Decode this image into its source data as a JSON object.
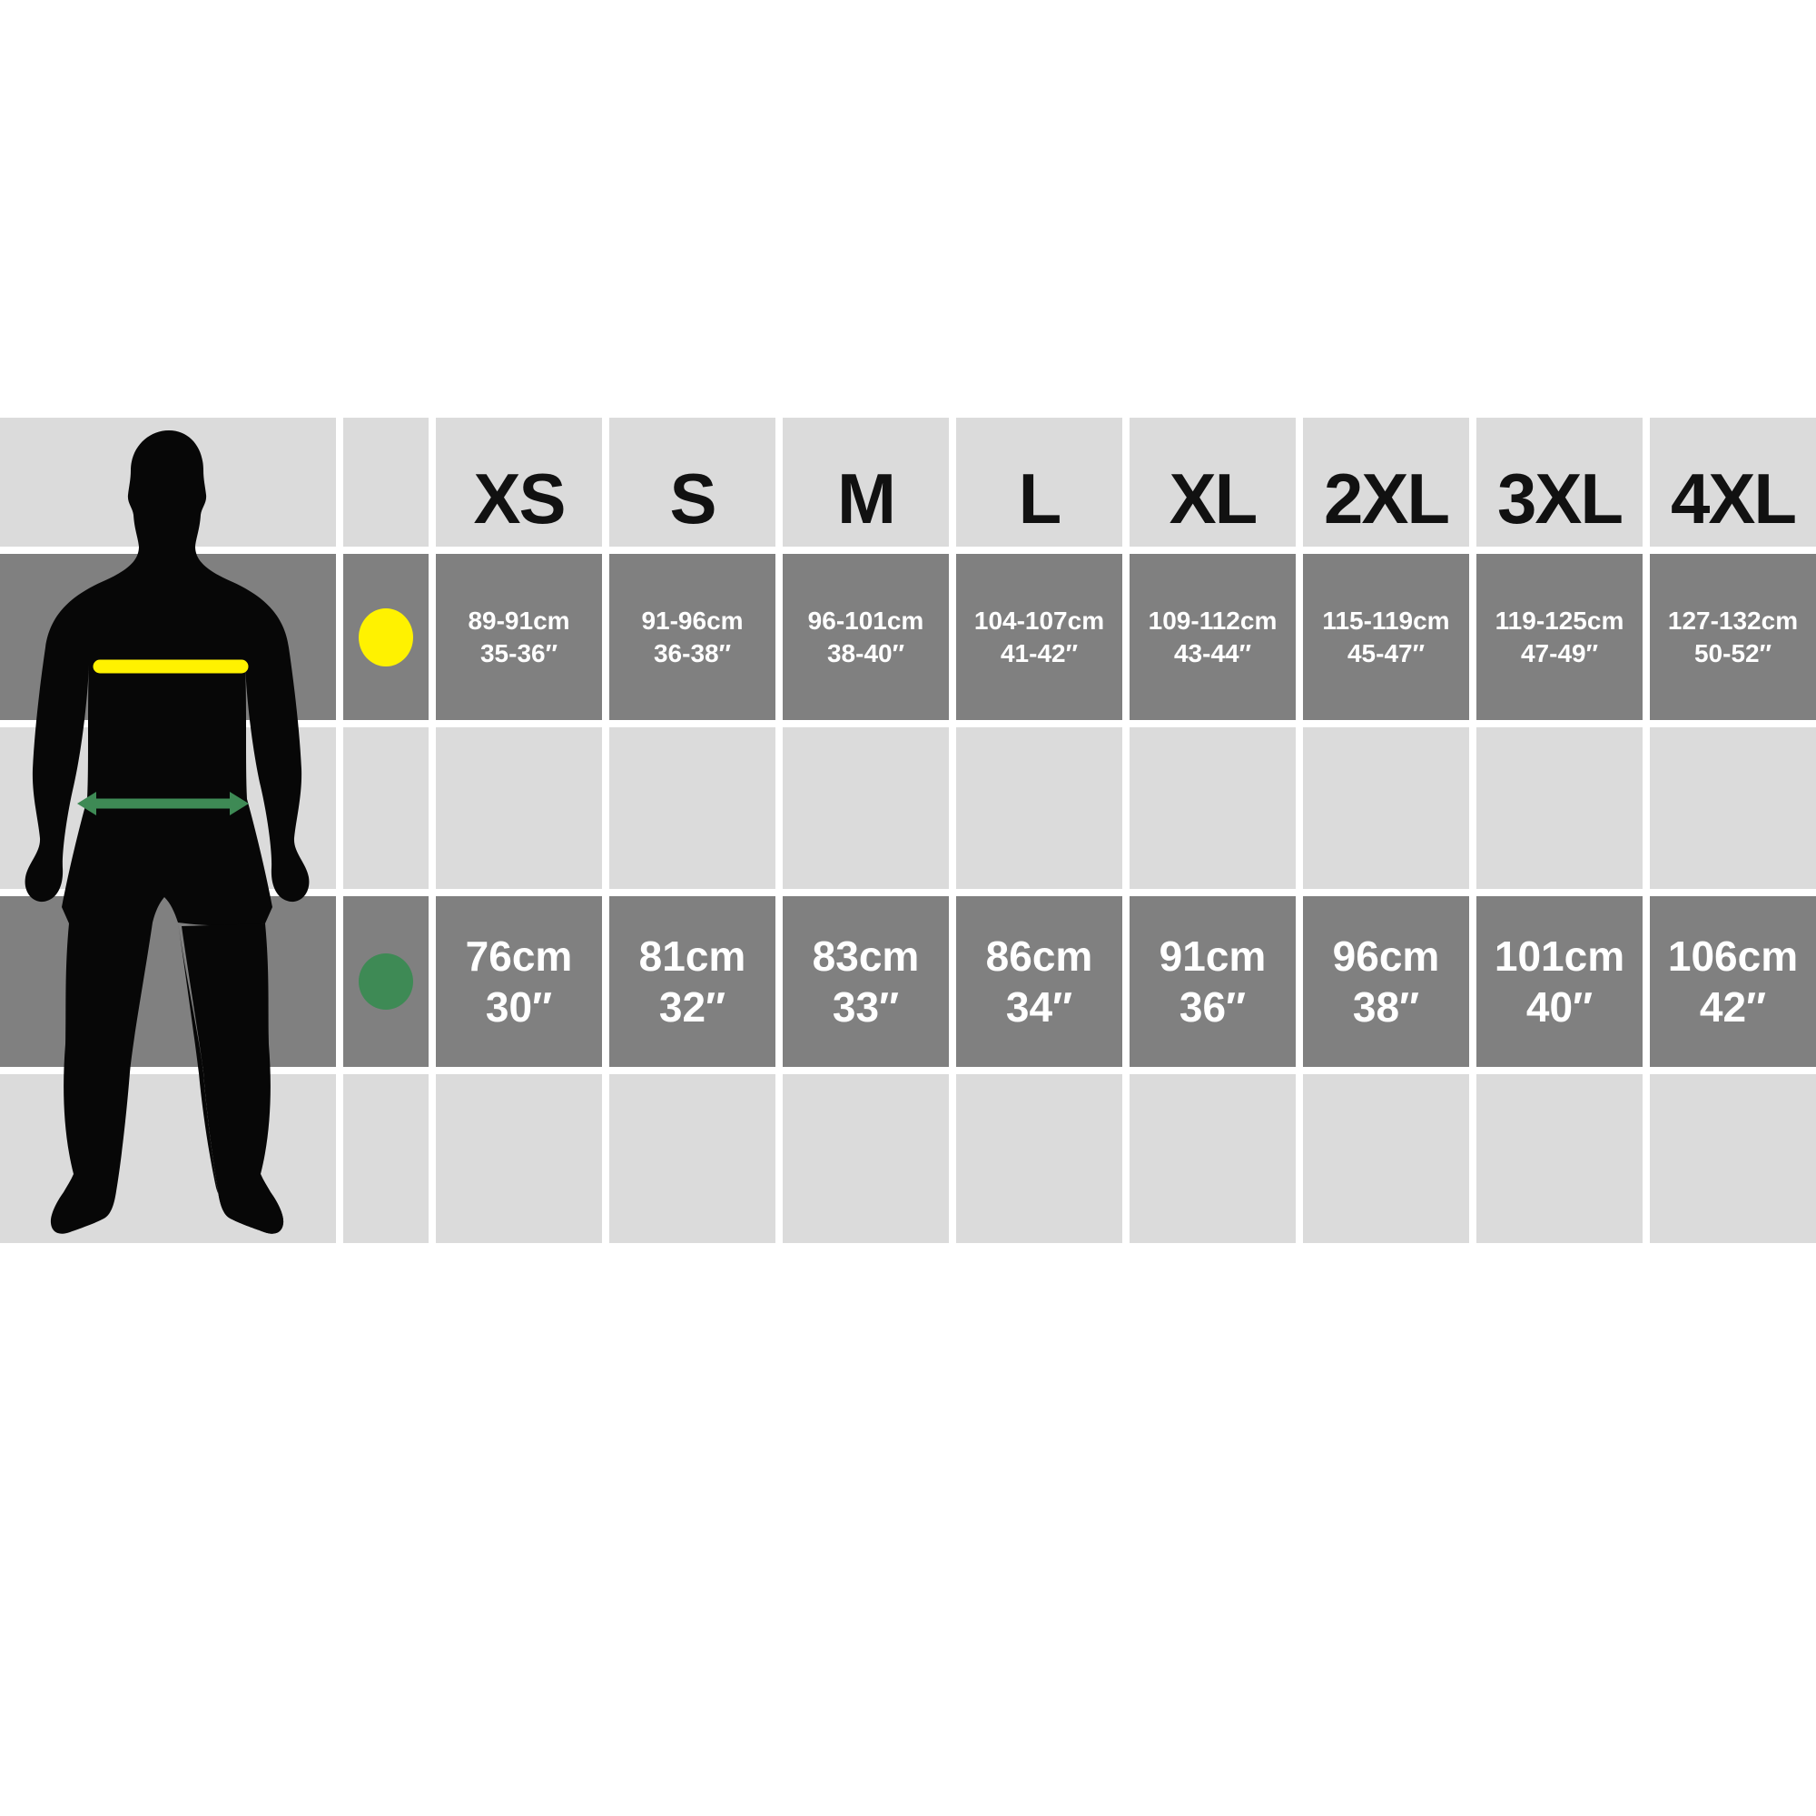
{
  "colors": {
    "background": "#ffffff",
    "row_light": "#dbdbdb",
    "row_dark": "#808080",
    "header_text": "#111111",
    "value_text": "#ffffff",
    "chest_indicator": "#fff200",
    "waist_indicator": "#3e8a55",
    "silhouette": "#070707"
  },
  "figure": {
    "description": "standing male silhouette, front view",
    "chest_line": "yellow horizontal measuring line across chest",
    "waist_line": "green double-headed arrow across waist"
  },
  "chart_data": {
    "type": "table",
    "columns": [
      "XS",
      "S",
      "M",
      "L",
      "XL",
      "2XL",
      "3XL",
      "4XL"
    ],
    "measurements": [
      {
        "name": "chest",
        "indicator": "yellow-dot",
        "values": [
          {
            "cm": "89-91cm",
            "in": "35-36″"
          },
          {
            "cm": "91-96cm",
            "in": "36-38″"
          },
          {
            "cm": "96-101cm",
            "in": "38-40″"
          },
          {
            "cm": "104-107cm",
            "in": "41-42″"
          },
          {
            "cm": "109-112cm",
            "in": "43-44″"
          },
          {
            "cm": "115-119cm",
            "in": "45-47″"
          },
          {
            "cm": "119-125cm",
            "in": "47-49″"
          },
          {
            "cm": "127-132cm",
            "in": "50-52″"
          }
        ]
      },
      {
        "name": "waist",
        "indicator": "green-dot",
        "values": [
          {
            "cm": "76cm",
            "in": "30″"
          },
          {
            "cm": "81cm",
            "in": "32″"
          },
          {
            "cm": "83cm",
            "in": "33″"
          },
          {
            "cm": "86cm",
            "in": "34″"
          },
          {
            "cm": "91cm",
            "in": "36″"
          },
          {
            "cm": "96cm",
            "in": "38″"
          },
          {
            "cm": "101cm",
            "in": "40″"
          },
          {
            "cm": "106cm",
            "in": "42″"
          }
        ]
      }
    ]
  }
}
